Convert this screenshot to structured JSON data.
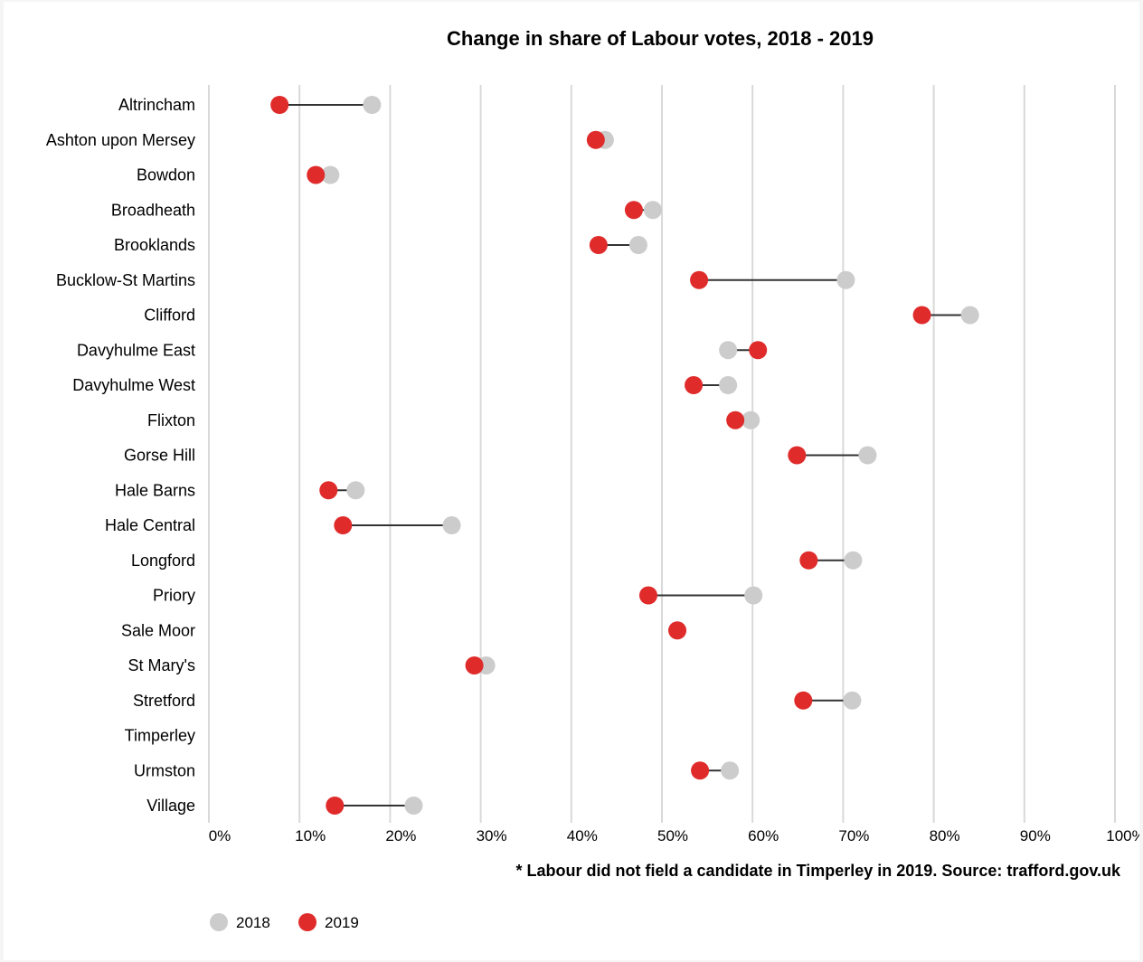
{
  "chart_data": {
    "type": "dumbbell",
    "title": "Change in share of Labour votes, 2018 - 2019",
    "note": "* Labour did not field a candidate in Timperley in 2019. Source: trafford.gov.uk",
    "xlim": [
      0,
      100
    ],
    "x_ticks": [
      "0%",
      "10%",
      "20%",
      "30%",
      "40%",
      "50%",
      "60%",
      "70%",
      "80%",
      "90%",
      "100%"
    ],
    "grid": "vertical",
    "legend_placement": "bottom-left",
    "categories": [
      "Altrincham",
      "Ashton upon Mersey",
      "Bowdon",
      "Broadheath",
      "Brooklands",
      "Bucklow-St Martins",
      "Clifford",
      "Davyhulme East",
      "Davyhulme West",
      "Flixton",
      "Gorse Hill",
      "Hale Barns",
      "Hale Central",
      "Longford",
      "Priory",
      "Sale Moor",
      "St Mary's",
      "Stretford",
      "Timperley",
      "Urmston",
      "Village"
    ],
    "series": [
      {
        "name": "2018",
        "color": "#cccccc",
        "values": [
          18.0,
          43.7,
          13.4,
          49.0,
          47.4,
          70.3,
          84.0,
          57.3,
          57.3,
          59.8,
          72.7,
          16.2,
          26.8,
          71.1,
          60.1,
          51.7,
          30.6,
          71.0,
          null,
          57.5,
          22.6
        ]
      },
      {
        "name": "2019",
        "color": "#e02b2b",
        "values": [
          7.8,
          42.7,
          11.8,
          46.9,
          43.0,
          54.1,
          78.7,
          60.6,
          53.5,
          58.1,
          64.9,
          13.2,
          14.8,
          66.2,
          48.5,
          51.7,
          29.3,
          65.6,
          null,
          54.2,
          13.9
        ]
      }
    ]
  }
}
